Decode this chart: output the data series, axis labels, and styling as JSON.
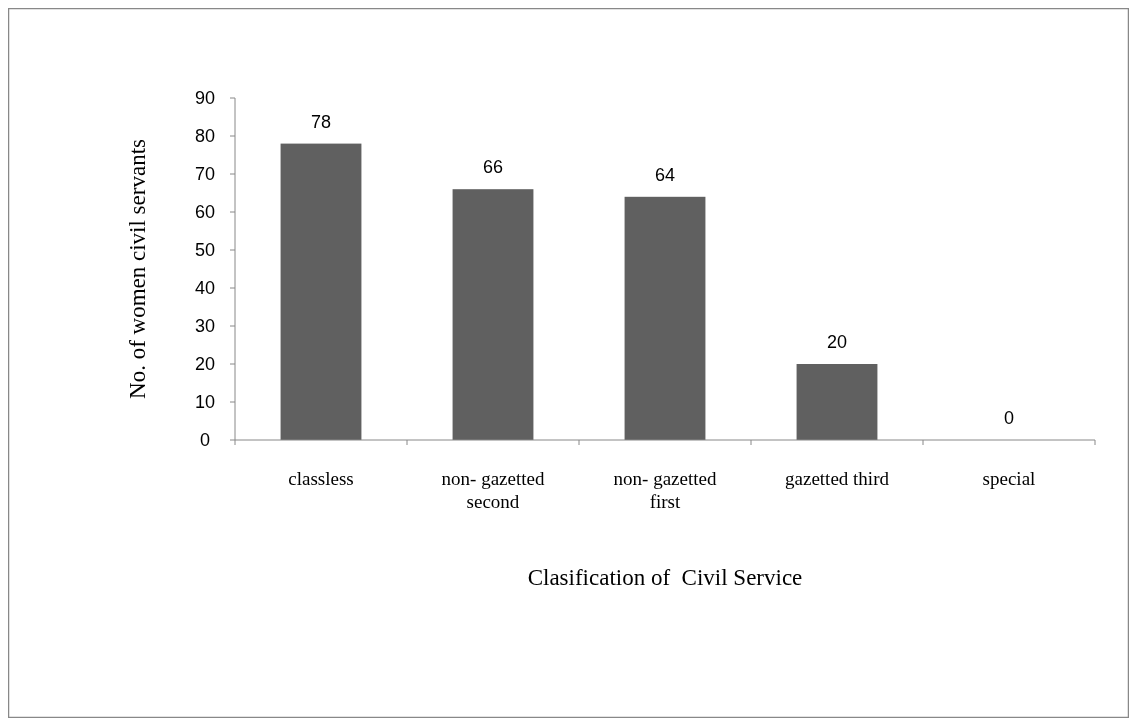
{
  "chart_data": {
    "type": "bar",
    "xlabel": "Clasification of  Civil Service",
    "ylabel": "No. of women civil servants",
    "categories": [
      "classless",
      "non- gazetted second",
      "non- gazetted first",
      "gazetted third",
      "special"
    ],
    "values": [
      78,
      66,
      64,
      20,
      0
    ],
    "color": "#606060",
    "ylim": [
      0,
      90
    ],
    "yticks": [
      0,
      10,
      20,
      30,
      40,
      50,
      60,
      70,
      80,
      90
    ],
    "grid": false,
    "data_labels": true
  }
}
